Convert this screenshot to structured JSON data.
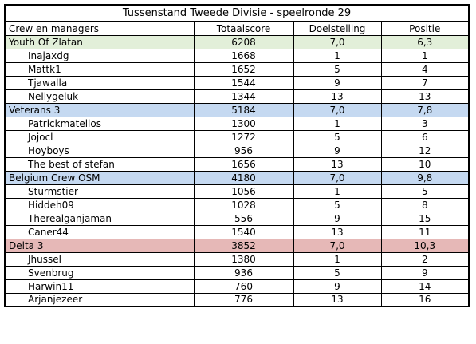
{
  "title": "Tussenstand Tweede Divisie - speelronde 29",
  "header": {
    "col1": "Crew en managers",
    "col2": "Totaalscore",
    "col3": "Doelstelling",
    "col4": "Positie"
  },
  "teams": [
    {
      "name": "Youth Of Zlatan",
      "total": "6208",
      "target": "7,0",
      "position": "6,3",
      "color": "#e2efd9",
      "managers": [
        {
          "name": "Inajaxdg",
          "total": "1668",
          "target": "1",
          "position": "1"
        },
        {
          "name": "Mattk1",
          "total": "1652",
          "target": "5",
          "position": "4"
        },
        {
          "name": "Tjawalla",
          "total": "1544",
          "target": "9",
          "position": "7"
        },
        {
          "name": "Nellygeluk",
          "total": "1344",
          "target": "13",
          "position": "13"
        }
      ]
    },
    {
      "name": "Veterans 3",
      "total": "5184",
      "target": "7,0",
      "position": "7,8",
      "color": "#c5d9f1",
      "managers": [
        {
          "name": "Patrickmatellos",
          "total": "1300",
          "target": "1",
          "position": "3"
        },
        {
          "name": "Jojocl",
          "total": "1272",
          "target": "5",
          "position": "6"
        },
        {
          "name": "Hoyboys",
          "total": "956",
          "target": "9",
          "position": "12"
        },
        {
          "name": "The best of stefan",
          "total": "1656",
          "target": "13",
          "position": "10"
        }
      ]
    },
    {
      "name": "Belgium Crew OSM",
      "total": "4180",
      "target": "7,0",
      "position": "9,8",
      "color": "#c5d9f1",
      "managers": [
        {
          "name": "Sturmstier",
          "total": "1056",
          "target": "1",
          "position": "5"
        },
        {
          "name": "Hiddeh09",
          "total": "1028",
          "target": "5",
          "position": "8"
        },
        {
          "name": "Therealganjaman",
          "total": "556",
          "target": "9",
          "position": "15"
        },
        {
          "name": "Caner44",
          "total": "1540",
          "target": "13",
          "position": "11"
        }
      ]
    },
    {
      "name": "Delta 3",
      "total": "3852",
      "target": "7,0",
      "position": "10,3",
      "color": "#e6b8b7",
      "managers": [
        {
          "name": "Jhussel",
          "total": "1380",
          "target": "1",
          "position": "2"
        },
        {
          "name": "Svenbrug",
          "total": "936",
          "target": "5",
          "position": "9"
        },
        {
          "name": "Harwin11",
          "total": "760",
          "target": "9",
          "position": "14"
        },
        {
          "name": "Arjanjezeer",
          "total": "776",
          "target": "13",
          "position": "16"
        }
      ]
    }
  ]
}
